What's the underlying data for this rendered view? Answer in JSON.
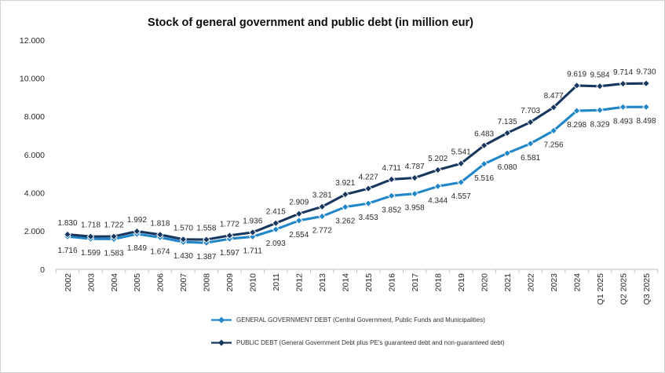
{
  "chart_data": {
    "type": "line",
    "title": "Stock of general government and public debt (in million eur)",
    "unit": "million eur",
    "categories": [
      "2002",
      "2003",
      "2004",
      "2005",
      "2006",
      "2007",
      "2008",
      "2009",
      "2010",
      "2011",
      "2012",
      "2013",
      "2014",
      "2015",
      "2016",
      "2017",
      "2018",
      "2019",
      "2020",
      "2021",
      "2022",
      "2023",
      "2024",
      "Q1 2025",
      "Q2 2025",
      "Q3 2025"
    ],
    "series": [
      {
        "name": "GENERAL GOVERNMENT DEBT (Central Government, Public Funds and Municipalities)",
        "color": "#2186C8",
        "marker": "diamond",
        "label_position": "below",
        "values": [
          1716,
          1599,
          1583,
          1849,
          1674,
          1430,
          1387,
          1597,
          1711,
          2093,
          2554,
          2772,
          3262,
          3453,
          3852,
          3958,
          4344,
          4557,
          5516,
          6080,
          6581,
          7256,
          8298,
          8329,
          8493,
          8498
        ]
      },
      {
        "name": "PUBLIC DEBT (General Government Debt plus PE's guaranteed debt and non-guaranteed debt)",
        "color": "#17375E",
        "marker": "diamond",
        "label_position": "above",
        "values": [
          1830,
          1718,
          1722,
          1992,
          1818,
          1570,
          1558,
          1772,
          1936,
          2415,
          2909,
          3281,
          3921,
          4227,
          4711,
          4787,
          5202,
          5541,
          6483,
          7135,
          7703,
          8477,
          9619,
          9584,
          9714,
          9730
        ]
      }
    ],
    "ylim": [
      0,
      12000
    ],
    "yticks": [
      0,
      2000,
      4000,
      6000,
      8000,
      10000,
      12000
    ],
    "ytick_labels": [
      "0",
      "2.000",
      "4.000",
      "6.000",
      "8.000",
      "10.000",
      "12.000"
    ],
    "number_format": "thousands-dot-separator",
    "grid": false,
    "legend_position": "bottom",
    "axis_color": "#bfbfbf",
    "label_color": "#2b2b2b"
  }
}
